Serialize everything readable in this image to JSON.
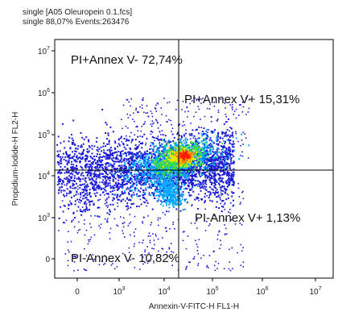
{
  "header": {
    "line1": "single [A05 Oleuropein 0.1.fcs]",
    "line2": "single  88,07% Events:263476"
  },
  "chart_data": {
    "type": "scatter",
    "plot_style": "flow cytometry density dot plot (blue to red density)",
    "xlabel": "Annexin-V-FITC-H FL1-H",
    "ylabel": "Propidium-Iodide-H FL2-H",
    "x_ticks": [
      {
        "label": "0",
        "exp": null,
        "pos": 0
      },
      {
        "label": "10",
        "exp": "3",
        "pos": 1
      },
      {
        "label": "10",
        "exp": "4",
        "pos": 2
      },
      {
        "label": "10",
        "exp": "5",
        "pos": 3
      },
      {
        "label": "10",
        "exp": "6",
        "pos": 4
      },
      {
        "label": "10",
        "exp": "7",
        "pos": 5
      }
    ],
    "y_ticks": [
      {
        "label": "0",
        "exp": null,
        "pos": 0
      },
      {
        "label": "10",
        "exp": "3",
        "pos": 1
      },
      {
        "label": "10",
        "exp": "4",
        "pos": 2
      },
      {
        "label": "10",
        "exp": "5",
        "pos": 3
      },
      {
        "label": "10",
        "exp": "6",
        "pos": 4
      },
      {
        "label": "10",
        "exp": "7",
        "pos": 5
      }
    ],
    "gate": {
      "x": 13000,
      "y": 13000
    },
    "quadrants": [
      {
        "id": "upper-left",
        "label": "PI+Annex V- 72,74%"
      },
      {
        "id": "upper-right",
        "label": "PI+Annex V+ 15,31%"
      },
      {
        "id": "lower-right",
        "label": "PI-Annex V+ 1,13%"
      },
      {
        "id": "lower-left",
        "label": "PI-Annex V- 10,82%"
      }
    ],
    "density_colors": [
      "#1a1ad6",
      "#00aaff",
      "#16d0c0",
      "#3ee03e",
      "#ffe600",
      "#ff7a00",
      "#ff1a00"
    ]
  }
}
